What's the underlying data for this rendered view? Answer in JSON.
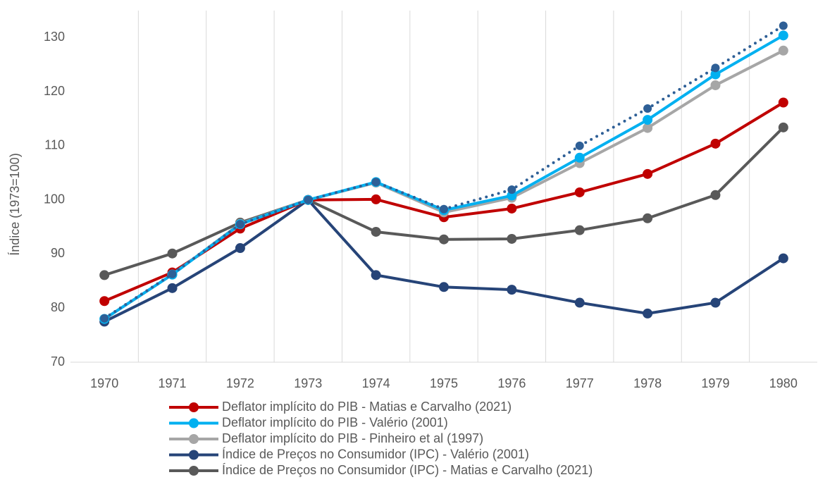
{
  "chart_data": {
    "type": "line",
    "y_label": "Índice (1973=100)",
    "categories": [
      "1970",
      "1971",
      "1972",
      "1973",
      "1974",
      "1975",
      "1976",
      "1977",
      "1978",
      "1979",
      "1980"
    ],
    "ylim": [
      70,
      135
    ],
    "yticks": [
      70,
      80,
      90,
      100,
      110,
      120,
      130
    ],
    "x_grid": true,
    "legend": "bottom",
    "series": [
      {
        "name": "Deflator  implícito do PIB -  Matias e Carvalho (2021)",
        "color": "#c00000",
        "values": [
          81.3,
          86.6,
          94.7,
          100,
          100.1,
          96.8,
          98.4,
          101.4,
          104.8,
          110.4,
          118
        ]
      },
      {
        "name": "Deflator implícito do PIB - Valério (2001)",
        "color": "#00b0f0",
        "values": [
          78,
          86.2,
          95.5,
          100,
          103.3,
          98.1,
          100.8,
          107.8,
          114.8,
          123.2,
          130.4
        ]
      },
      {
        "name": "Deflator implícito do PIB - Pinheiro et al (1997)",
        "color": "#a6a6a6",
        "values": [
          78,
          86.2,
          95.6,
          100,
          103.2,
          97.7,
          100.4,
          106.8,
          113.3,
          121.2,
          127.6
        ]
      },
      {
        "name": "Índice de Preços no Consumidor (IPC) - Valério (2001)",
        "color": "#264478",
        "values": [
          77.5,
          83.7,
          91.1,
          100,
          86.1,
          83.9,
          83.4,
          81,
          79,
          81,
          89.2
        ]
      },
      {
        "name": "Índice de Preços no Consumidor (IPC) - Matias e Carvalho (2021)",
        "color": "#595959",
        "values": [
          86.1,
          90.1,
          95.8,
          100,
          94.1,
          92.7,
          92.8,
          94.4,
          96.6,
          100.9,
          113.4
        ]
      },
      {
        "color": "#2e5f96",
        "dash": "dotted",
        "values": [
          78.1,
          86.3,
          95.5,
          100,
          103.3,
          98.3,
          101.9,
          110,
          116.9,
          124.4,
          132.2
        ]
      }
    ]
  }
}
